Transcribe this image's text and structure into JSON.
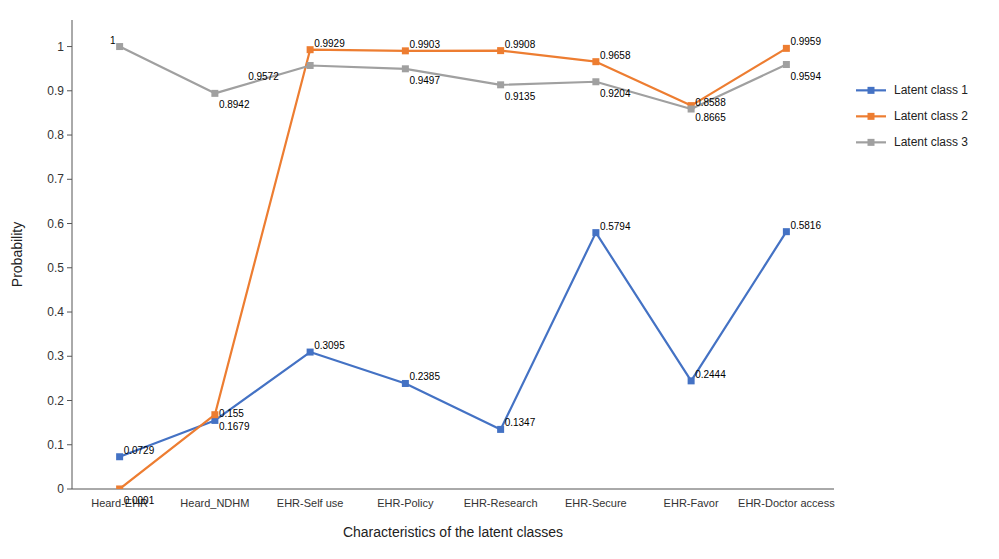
{
  "chart_data": {
    "type": "line",
    "xlabel": "Characteristics of the latent classes",
    "ylabel": "Probability",
    "categories": [
      "Heard-EHR",
      "Heard_NDHM",
      "EHR-Self use",
      "EHR-Policy",
      "EHR-Research",
      "EHR-Secure",
      "EHR-Favor",
      "EHR-Doctor access"
    ],
    "series": [
      {
        "name": "Latent class 1",
        "color": "#4472C4",
        "marker": "square",
        "values": [
          0.0729,
          0.155,
          0.3095,
          0.2385,
          0.1347,
          0.5794,
          0.2444,
          0.5816
        ]
      },
      {
        "name": "Latent class 2",
        "color": "#ED7D31",
        "marker": "square",
        "values": [
          0.0001,
          0.1679,
          0.9929,
          0.9903,
          0.9908,
          0.9658,
          0.8665,
          0.9959
        ]
      },
      {
        "name": "Latent class 3",
        "color": "#A0A0A0",
        "marker": "square",
        "values": [
          1.0,
          0.8942,
          0.9572,
          0.9497,
          0.9135,
          0.9204,
          0.8588,
          0.9594
        ]
      }
    ],
    "ylim": [
      0,
      1.06
    ],
    "yticks": [
      0,
      0.1,
      0.2,
      0.3,
      0.4,
      0.5,
      0.6,
      0.7,
      0.8,
      0.9,
      1
    ],
    "grid": false,
    "legend": "right",
    "data_labels": true
  }
}
